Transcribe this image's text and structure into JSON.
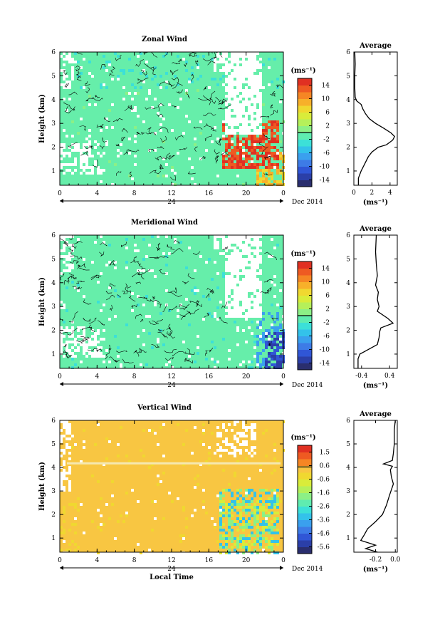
{
  "colors": {
    "background_fill": "#66EEAA",
    "contour_line": "#000000",
    "vertical_fill": "#F8C642",
    "axis": "#000000"
  },
  "shared": {
    "x_ticks": [
      "0",
      "4",
      "8",
      "12",
      "16",
      "20",
      "0"
    ],
    "day_label": "24",
    "month_label": "Dec 2014",
    "xlabel": "Local Time",
    "height_ticks": [
      "1",
      "2",
      "3",
      "4",
      "5",
      "6"
    ],
    "ylabel": "Height (km)",
    "unit_label": "(ms⁻¹)"
  },
  "chart_data": [
    {
      "type": "heatmap",
      "title": "Zonal Wind",
      "xlabel": "Local Time",
      "ylabel": "Height (km)",
      "xlim": [
        0,
        24
      ],
      "ylim": [
        0.4,
        6
      ],
      "colorbar": {
        "label": "(ms⁻¹)",
        "ticks": [
          "14",
          "10",
          "6",
          "2",
          "-2",
          "-6",
          "-10",
          "-14"
        ],
        "range": [
          -16,
          16
        ],
        "colors": [
          "#2A2E6E",
          "#2B3FA8",
          "#3056D6",
          "#3D7BE6",
          "#3AA0EE",
          "#33C2EA",
          "#3CE0D8",
          "#5FECB0",
          "#8CF086",
          "#B5F05A",
          "#D9EC3A",
          "#F0D830",
          "#F7B02A",
          "#F58624",
          "#EE5A22",
          "#E03022"
        ]
      },
      "average": {
        "title": "Average",
        "x_ticks": [
          "0",
          "2",
          "4"
        ],
        "xlim": [
          0,
          4.8
        ],
        "xlabel": "(ms⁻¹)",
        "profile": [
          [
            0.5,
            0.4
          ],
          [
            0.5,
            0.7
          ],
          [
            0.8,
            1.0
          ],
          [
            1.2,
            1.3
          ],
          [
            1.6,
            1.6
          ],
          [
            2.0,
            1.8
          ],
          [
            2.7,
            2.0
          ],
          [
            3.6,
            2.1
          ],
          [
            4.3,
            2.3
          ],
          [
            4.5,
            2.45
          ],
          [
            4.1,
            2.6
          ],
          [
            3.3,
            2.8
          ],
          [
            2.4,
            3.0
          ],
          [
            1.7,
            3.2
          ],
          [
            1.3,
            3.4
          ],
          [
            1.0,
            3.6
          ],
          [
            0.8,
            3.8
          ],
          [
            0.3,
            3.95
          ],
          [
            0.15,
            4.1
          ],
          [
            0.1,
            4.5
          ],
          [
            0.1,
            5.0
          ],
          [
            0.15,
            5.5
          ],
          [
            0.1,
            6.0
          ]
        ]
      }
    },
    {
      "type": "heatmap",
      "title": "Meridional Wind",
      "xlabel": "Local Time",
      "ylabel": "Height (km)",
      "xlim": [
        0,
        24
      ],
      "ylim": [
        0.4,
        6
      ],
      "colorbar": {
        "label": "(ms⁻¹)",
        "ticks": [
          "14",
          "10",
          "6",
          "2",
          "-2",
          "-6",
          "-10",
          "-14"
        ],
        "range": [
          -16,
          16
        ],
        "colors": [
          "#2A2E6E",
          "#2B3FA8",
          "#3056D6",
          "#3D7BE6",
          "#3AA0EE",
          "#33C2EA",
          "#3CE0D8",
          "#5FECB0",
          "#8CF086",
          "#B5F05A",
          "#D9EC3A",
          "#F0D830",
          "#F7B02A",
          "#F58624",
          "#EE5A22",
          "#E03022"
        ]
      },
      "average": {
        "title": "Average",
        "x_ticks": [
          "-0.4",
          "0.4"
        ],
        "xlim": [
          -0.62,
          0.62
        ],
        "xlabel": "(ms⁻¹)",
        "profile": [
          [
            -0.5,
            0.4
          ],
          [
            -0.5,
            0.8
          ],
          [
            -0.45,
            1.0
          ],
          [
            -0.2,
            1.2
          ],
          [
            0.05,
            1.4
          ],
          [
            0.1,
            1.7
          ],
          [
            0.12,
            1.95
          ],
          [
            0.15,
            2.1
          ],
          [
            0.5,
            2.3
          ],
          [
            0.35,
            2.5
          ],
          [
            0.05,
            2.8
          ],
          [
            0.1,
            3.0
          ],
          [
            0.05,
            3.3
          ],
          [
            0.08,
            3.6
          ],
          [
            0.0,
            3.9
          ],
          [
            0.05,
            4.3
          ],
          [
            0.02,
            4.8
          ],
          [
            0.0,
            5.3
          ],
          [
            0.02,
            6.0
          ]
        ]
      }
    },
    {
      "type": "heatmap",
      "title": "Vertical Wind",
      "xlabel": "Local Time",
      "ylabel": "Height (km)",
      "xlim": [
        0,
        24
      ],
      "ylim": [
        0.4,
        6
      ],
      "colorbar": {
        "label": "(ms⁻¹)",
        "ticks": [
          "1.5",
          "0.6",
          "-0.6",
          "-1.6",
          "-2.6",
          "-3.6",
          "-4.6",
          "-5.6"
        ],
        "range": [
          -6.0,
          2.0
        ],
        "colors": [
          "#2A2E6E",
          "#2B3FA8",
          "#3056D6",
          "#3D7BE6",
          "#3AA0EE",
          "#33C2EA",
          "#3CE0D8",
          "#5FECB0",
          "#8CF086",
          "#B5F05A",
          "#D9EC3A",
          "#F0D830",
          "#F8C642",
          "#F58624",
          "#EE5A22",
          "#E03022"
        ]
      },
      "average": {
        "title": "Average",
        "x_ticks": [
          "-0.2",
          "0.0"
        ],
        "xlim": [
          -0.42,
          0.02
        ],
        "xlabel": "(ms⁻¹)",
        "profile": [
          [
            -0.18,
            0.4
          ],
          [
            -0.3,
            0.55
          ],
          [
            -0.2,
            0.7
          ],
          [
            -0.35,
            0.9
          ],
          [
            -0.32,
            1.1
          ],
          [
            -0.28,
            1.4
          ],
          [
            -0.2,
            1.7
          ],
          [
            -0.13,
            2.0
          ],
          [
            -0.09,
            2.4
          ],
          [
            -0.06,
            2.8
          ],
          [
            -0.02,
            3.3
          ],
          [
            -0.04,
            3.6
          ],
          [
            -0.05,
            3.9
          ],
          [
            -0.03,
            4.05
          ],
          [
            -0.12,
            4.15
          ],
          [
            -0.03,
            4.3
          ],
          [
            -0.02,
            4.6
          ],
          [
            -0.01,
            5.0
          ],
          [
            -0.01,
            5.6
          ],
          [
            0.0,
            6.0
          ]
        ]
      }
    }
  ]
}
